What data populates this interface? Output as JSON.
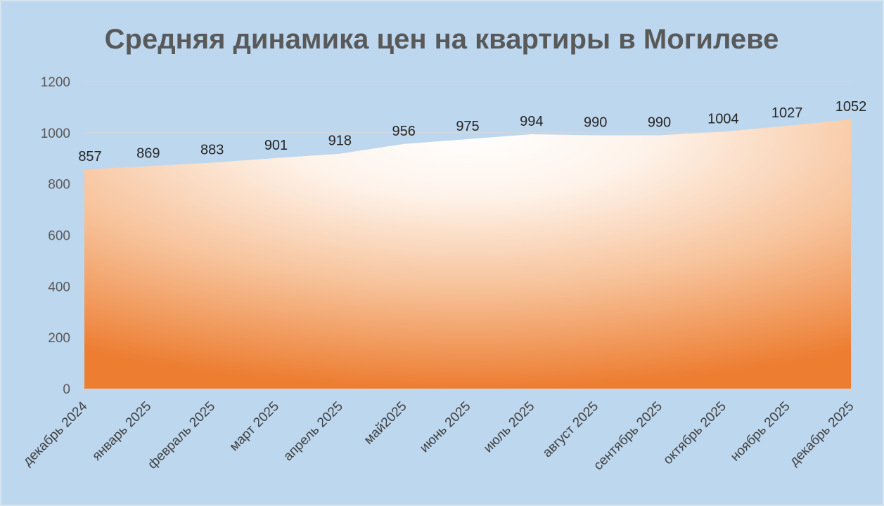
{
  "chart_data": {
    "type": "area",
    "title": "Средняя динамика цен на квартиры в Могилеве",
    "xlabel": "",
    "ylabel": "",
    "categories": [
      "декабрь 2024",
      "январь 2025",
      "февраль 2025",
      "март 2025",
      "апрель 2025",
      "май2025",
      "июнь 2025",
      "июль 2025",
      "август 2025",
      "сентябрь 2025",
      "октябрь 2025",
      "ноябрь 2025",
      "декабрь 2025"
    ],
    "values": [
      857,
      869,
      883,
      901,
      918,
      956,
      975,
      994,
      990,
      990,
      1004,
      1027,
      1052
    ],
    "ylim": [
      0,
      1200
    ],
    "yticks": [
      "0",
      "200",
      "400",
      "600",
      "800",
      "1000",
      "1200"
    ],
    "grid": true,
    "legend": "none",
    "colors": {
      "background": "#bdd7ee",
      "fill_edge": "#ed7d31",
      "fill_center": "#ffffff",
      "gridline": "#d9d9d9"
    }
  }
}
